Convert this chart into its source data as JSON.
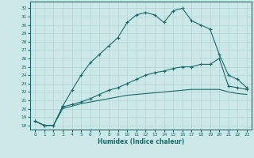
{
  "xlabel": "Humidex (Indice chaleur)",
  "ylabel": "",
  "bg_color": "#cce8e8",
  "grid_color": "#b0d4d4",
  "line_color": "#1a6b6b",
  "xlim": [
    -0.5,
    23.5
  ],
  "ylim": [
    17.5,
    32.8
  ],
  "xticks": [
    0,
    1,
    2,
    3,
    4,
    5,
    6,
    7,
    8,
    9,
    10,
    11,
    12,
    13,
    14,
    15,
    16,
    17,
    18,
    19,
    20,
    21,
    22,
    23
  ],
  "yticks": [
    18,
    19,
    20,
    21,
    22,
    23,
    24,
    25,
    26,
    27,
    28,
    29,
    30,
    31,
    32
  ],
  "line1_x": [
    0,
    1,
    2,
    3,
    4,
    5,
    6,
    7,
    8,
    9,
    10,
    11,
    12,
    13,
    14,
    15,
    16,
    17,
    18,
    19,
    20,
    21,
    22,
    23
  ],
  "line1_y": [
    18.5,
    18.0,
    18.0,
    20.3,
    22.2,
    24.0,
    25.5,
    26.5,
    27.5,
    28.5,
    30.3,
    31.2,
    31.5,
    31.2,
    30.3,
    31.7,
    32.0,
    30.5,
    30.0,
    29.5,
    26.5,
    24.0,
    23.5,
    22.5
  ],
  "line2_x": [
    0,
    1,
    2,
    3,
    4,
    5,
    6,
    7,
    8,
    9,
    10,
    11,
    12,
    13,
    14,
    15,
    16,
    17,
    18,
    19,
    20,
    21,
    22,
    23
  ],
  "line2_y": [
    18.5,
    18.0,
    18.0,
    20.2,
    20.5,
    20.8,
    21.2,
    21.7,
    22.2,
    22.5,
    23.0,
    23.5,
    24.0,
    24.3,
    24.5,
    24.8,
    25.0,
    25.0,
    25.3,
    25.3,
    26.0,
    22.7,
    22.5,
    22.3
  ],
  "line3_x": [
    0,
    1,
    2,
    3,
    4,
    5,
    6,
    7,
    8,
    9,
    10,
    11,
    12,
    13,
    14,
    15,
    16,
    17,
    18,
    19,
    20,
    21,
    22,
    23
  ],
  "line3_y": [
    18.5,
    18.0,
    18.0,
    20.0,
    20.3,
    20.6,
    20.8,
    21.0,
    21.2,
    21.4,
    21.6,
    21.7,
    21.8,
    21.9,
    22.0,
    22.1,
    22.2,
    22.3,
    22.3,
    22.3,
    22.3,
    22.0,
    21.8,
    21.7
  ]
}
